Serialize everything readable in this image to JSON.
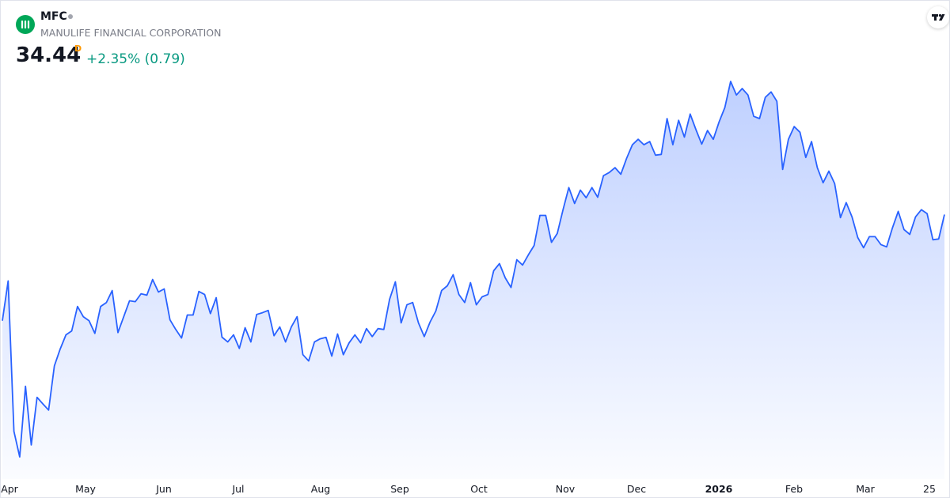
{
  "header": {
    "symbol": "MFC",
    "company": "MANULIFE FINANCIAL CORPORATION",
    "price": "34.44",
    "interval": "D",
    "change": "+2.35%",
    "change_abs": "(0.79)"
  },
  "chart_data": {
    "type": "area",
    "color": "#2962ff",
    "xlabels": [
      "Apr",
      "May",
      "Jun",
      "Jul",
      "Aug",
      "Sep",
      "Oct",
      "Nov",
      "Dec",
      "2026",
      "Feb",
      "Mar",
      "25"
    ],
    "values": [
      30.7,
      32.1,
      26.8,
      25.9,
      28.39,
      26.32,
      28.0,
      27.77,
      27.55,
      29.11,
      29.7,
      30.2,
      30.34,
      31.2,
      30.84,
      30.7,
      30.25,
      31.2,
      31.34,
      31.76,
      30.28,
      30.84,
      31.4,
      31.37,
      31.65,
      31.6,
      32.15,
      31.71,
      31.82,
      30.73,
      30.39,
      30.09,
      30.9,
      30.9,
      31.73,
      31.62,
      30.95,
      31.51,
      30.12,
      29.95,
      30.2,
      29.72,
      30.45,
      29.95,
      30.92,
      30.98,
      31.06,
      30.17,
      30.48,
      29.95,
      30.48,
      30.84,
      29.5,
      29.28,
      29.95,
      30.06,
      30.11,
      29.45,
      30.23,
      29.5,
      29.92,
      30.2,
      29.92,
      30.42,
      30.14,
      30.42,
      30.39,
      31.45,
      32.07,
      30.62,
      31.26,
      31.34,
      30.62,
      30.14,
      30.65,
      31.04,
      31.76,
      31.93,
      32.32,
      31.62,
      31.34,
      32.04,
      31.26,
      31.54,
      31.62,
      32.46,
      32.71,
      32.21,
      31.87,
      32.85,
      32.66,
      33.02,
      33.35,
      34.41,
      34.41,
      33.46,
      33.77,
      34.61,
      35.39,
      34.83,
      35.3,
      35.03,
      35.39,
      35.05,
      35.81,
      35.92,
      36.09,
      35.86,
      36.42,
      36.9,
      37.09,
      36.9,
      37.01,
      36.53,
      36.56,
      37.82,
      36.9,
      37.76,
      37.17,
      37.98,
      37.43,
      36.92,
      37.4,
      37.09,
      37.7,
      38.21,
      39.13,
      38.65,
      38.88,
      38.65,
      37.9,
      37.82,
      38.57,
      38.76,
      38.43,
      36.03,
      37.09,
      37.54,
      37.34,
      36.45,
      37.01,
      36.09,
      35.56,
      35.97,
      35.53,
      34.33,
      34.86,
      34.36,
      33.63,
      33.27,
      33.66,
      33.66,
      33.38,
      33.3,
      33.97,
      34.55,
      33.91,
      33.74,
      34.36,
      34.61,
      34.47,
      33.55,
      33.58,
      34.44
    ]
  }
}
